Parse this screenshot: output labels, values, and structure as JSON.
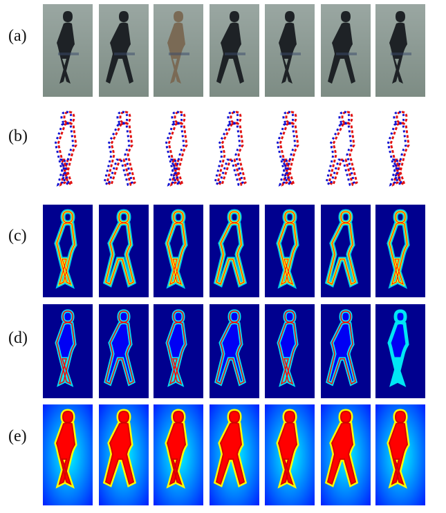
{
  "figure": {
    "rows": [
      {
        "label": "(a)",
        "kind": "photo"
      },
      {
        "label": "(b)",
        "kind": "motion"
      },
      {
        "label": "(c)",
        "kind": "edge-heatmap"
      },
      {
        "label": "(d)",
        "kind": "saliency-heatmap"
      },
      {
        "label": "(e)",
        "kind": "body-heatmap"
      }
    ],
    "columns": 7,
    "colors": {
      "photo_bg": "#7d8c84",
      "motion_red": "#e01010",
      "motion_blue": "#1010d0",
      "jet_dark": "#00008f",
      "jet_blue": "#0000ff",
      "jet_cyan": "#00ffff",
      "jet_yellow": "#ffff00",
      "jet_red": "#ff0000"
    }
  }
}
